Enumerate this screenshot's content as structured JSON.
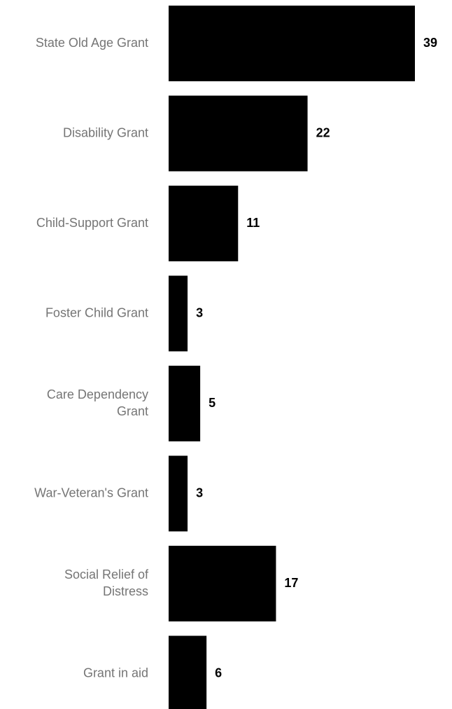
{
  "chart_data": {
    "type": "bar",
    "orientation": "horizontal",
    "categories": [
      [
        "State Old Age Grant"
      ],
      [
        "Disability Grant"
      ],
      [
        "Child-Support Grant"
      ],
      [
        "Foster Child Grant"
      ],
      [
        "Care Dependency",
        "Grant"
      ],
      [
        "War-Veteran's Grant"
      ],
      [
        "Social Relief of",
        "Distress"
      ],
      [
        "Grant in aid"
      ]
    ],
    "values": [
      39,
      22,
      11,
      3,
      5,
      3,
      17,
      6
    ],
    "value_labels": [
      "39",
      "22",
      "11",
      "3",
      "5",
      "3",
      "17",
      "6"
    ],
    "title": "",
    "xlabel": "",
    "ylabel": "",
    "xlim": [
      0,
      39
    ],
    "grid": false,
    "legend": "none",
    "colors": {
      "bar": "#000000",
      "category_label": "#757575",
      "value_label": "#000000"
    }
  }
}
